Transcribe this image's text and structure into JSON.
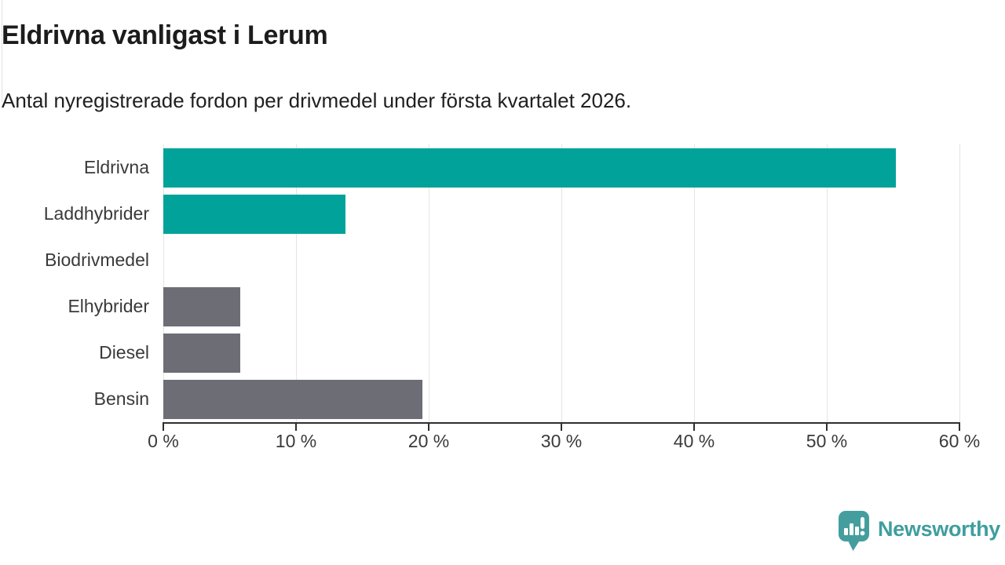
{
  "header": {
    "title": "Eldrivna vanligast i Lerum",
    "subtitle": "Antal nyregistrerade fordon per drivmedel under första kvartalet 2026."
  },
  "chart_data": {
    "type": "bar",
    "orientation": "horizontal",
    "title": "Eldrivna vanligast i Lerum",
    "subtitle": "Antal nyregistrerade fordon per drivmedel under första kvartalet 2026.",
    "categories": [
      "Eldrivna",
      "Laddhybrider",
      "Biodrivmedel",
      "Elhybrider",
      "Diesel",
      "Bensin"
    ],
    "values": [
      55.2,
      13.7,
      0,
      5.8,
      5.8,
      19.5
    ],
    "value_unit": "%",
    "xlim": [
      0,
      60
    ],
    "x_tick_values": [
      0,
      10,
      20,
      30,
      40,
      50,
      60
    ],
    "x_tick_labels": [
      "0 %",
      "10 %",
      "20 %",
      "30 %",
      "40 %",
      "50 %",
      "60 %"
    ],
    "grid": true,
    "legend_position": "none",
    "bar_colors": [
      "#00a29a",
      "#00a29a",
      "#6d6d76",
      "#6d6d76",
      "#6d6d76",
      "#6d6d76"
    ],
    "highlight_color": "#00a29a",
    "default_color": "#6d6d76"
  },
  "colors": {
    "grid": "#e4e4e4",
    "axis": "#2f2f2f",
    "title_text": "#1c1c1c",
    "label_text": "#3a3a3a"
  },
  "footer": {
    "brand": "Newsworthy",
    "logo_color": "#459e9e",
    "wordmark_color": "#3f9e9e"
  }
}
